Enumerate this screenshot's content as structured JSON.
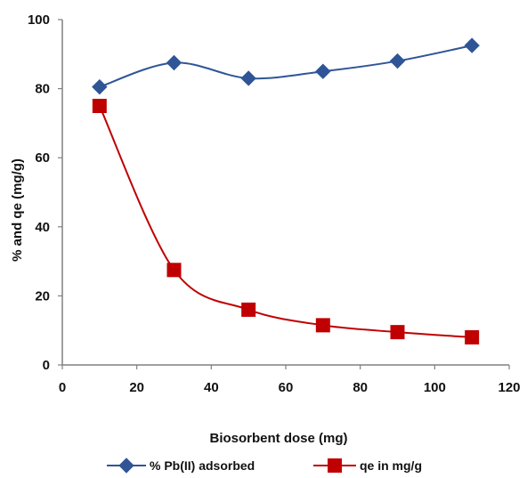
{
  "chart_data": {
    "type": "line",
    "title": "",
    "xlabel": "Biosorbent dose (mg)",
    "ylabel": "% and qe (mg/g)",
    "xlim": [
      0,
      120
    ],
    "ylim": [
      0,
      100
    ],
    "x_ticks": [
      "0",
      "20",
      "40",
      "60",
      "80",
      "100",
      "120"
    ],
    "y_ticks": [
      "0",
      "20",
      "40",
      "60",
      "80",
      "100"
    ],
    "grid": false,
    "legend_position": "bottom",
    "x": [
      10,
      30,
      50,
      70,
      90,
      110
    ],
    "series": [
      {
        "name": "% Pb(II) adsorbed",
        "values": [
          80.5,
          87.5,
          83,
          85,
          88,
          92.5
        ],
        "color": "#2F5597",
        "marker": "diamond"
      },
      {
        "name": "qe in mg/g",
        "values": [
          75,
          27.5,
          16,
          11.5,
          9.5,
          8
        ],
        "color": "#C00000",
        "marker": "square"
      }
    ]
  }
}
